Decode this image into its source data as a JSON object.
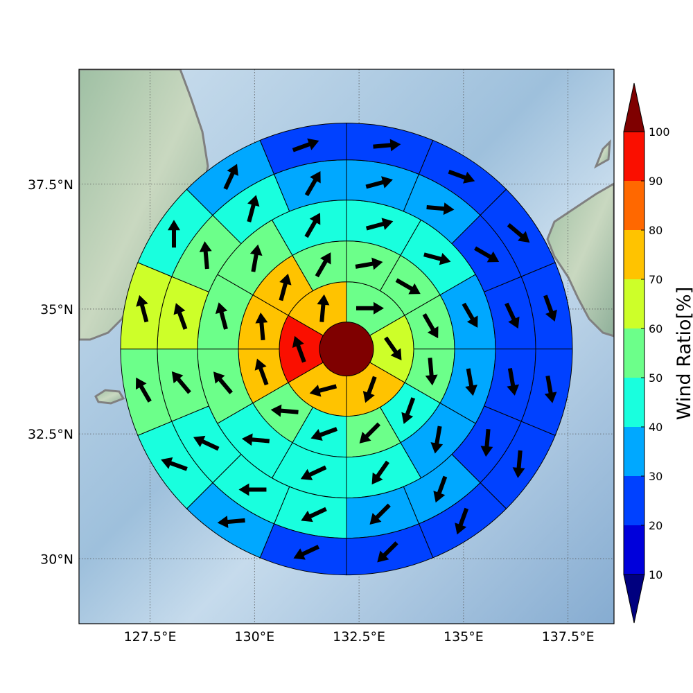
{
  "chart_data": {
    "type": "heatmap",
    "title": "",
    "xlabel": "",
    "ylabel": "",
    "xlim": [
      125.8,
      138.6
    ],
    "ylim": [
      28.7,
      39.8
    ],
    "center": [
      132.2,
      34.2
    ],
    "x_ticks": [
      {
        "value": 127.5,
        "label": "127.5°E"
      },
      {
        "value": 130,
        "label": "130°E"
      },
      {
        "value": 132.5,
        "label": "132.5°E"
      },
      {
        "value": 135,
        "label": "135°E"
      },
      {
        "value": 137.5,
        "label": "137.5°E"
      }
    ],
    "y_ticks": [
      {
        "value": 30,
        "label": "30°N"
      },
      {
        "value": 32.5,
        "label": "32.5°N"
      },
      {
        "value": 35,
        "label": "35°N"
      },
      {
        "value": 37.5,
        "label": "37.5°N"
      }
    ],
    "grid": true,
    "colorbar": {
      "label": "Wind Ratio[%]",
      "levels": [
        10,
        20,
        30,
        40,
        50,
        60,
        70,
        80,
        90,
        100
      ],
      "colors": [
        "#00007f",
        "#0000db",
        "#0041ff",
        "#00a8ff",
        "#19ffde",
        "#6cff8a",
        "#cdff29",
        "#ffc300",
        "#ff6800",
        "#fa0f00",
        "#7f0000"
      ],
      "extend": "both"
    },
    "rings": [
      {
        "ring": 0,
        "sectors": 1,
        "values": [
          100
        ],
        "wind_dir": []
      },
      {
        "ring": 1,
        "sectors": 6,
        "values": [
          55,
          65,
          72,
          72,
          95,
          72
        ],
        "wind_dir": [
          90,
          145,
          200,
          255,
          340,
          5
        ]
      },
      {
        "ring": 2,
        "sectors": 12,
        "values": [
          55,
          55,
          55,
          55,
          45,
          55,
          45,
          55,
          72,
          72,
          72,
          55
        ],
        "wind_dir": [
          80,
          120,
          150,
          175,
          200,
          225,
          250,
          275,
          340,
          355,
          15,
          30
        ]
      },
      {
        "ring": 3,
        "sectors": 12,
        "values": [
          45,
          45,
          35,
          35,
          35,
          45,
          45,
          45,
          55,
          55,
          55,
          45
        ],
        "wind_dir": [
          75,
          105,
          150,
          170,
          190,
          215,
          245,
          275,
          320,
          345,
          10,
          30
        ]
      },
      {
        "ring": 4,
        "sectors": 16,
        "values": [
          35,
          35,
          25,
          25,
          25,
          25,
          35,
          35,
          45,
          45,
          45,
          55,
          65,
          55,
          45,
          35
        ],
        "wind_dir": [
          75,
          95,
          120,
          155,
          170,
          185,
          200,
          225,
          245,
          270,
          295,
          320,
          340,
          355,
          15,
          30
        ]
      },
      {
        "ring": 5,
        "sectors": 16,
        "values": [
          25,
          25,
          25,
          25,
          25,
          25,
          25,
          25,
          25,
          35,
          45,
          55,
          65,
          45,
          35,
          25
        ],
        "wind_dir": [
          85,
          110,
          130,
          160,
          170,
          185,
          200,
          225,
          245,
          265,
          290,
          330,
          345,
          0,
          25,
          70
        ]
      }
    ]
  }
}
